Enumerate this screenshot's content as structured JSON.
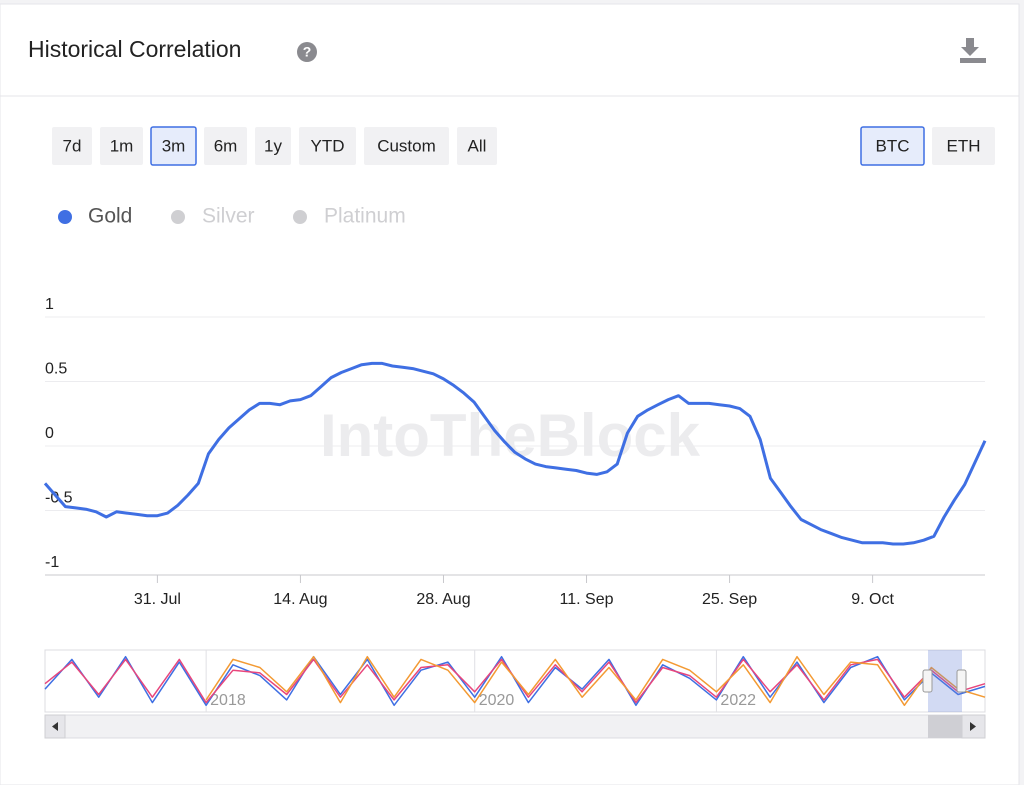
{
  "header": {
    "title": "Historical Correlation",
    "help_icon": "?"
  },
  "range_buttons": [
    "7d",
    "1m",
    "3m",
    "6m",
    "1y",
    "YTD",
    "Custom",
    "All"
  ],
  "selected_range_index": 2,
  "asset_buttons": [
    "BTC",
    "ETH"
  ],
  "selected_asset_index": 0,
  "watermark": "IntoTheBlock",
  "chart_data": [
    {
      "type": "line",
      "categories": [
        null,
        null,
        null,
        null,
        null,
        null,
        null,
        null,
        null,
        null,
        null,
        "31. Jul",
        null,
        null,
        null,
        null,
        null,
        null,
        null,
        null,
        null,
        null,
        null,
        null,
        null,
        "14. Aug",
        null,
        null,
        null,
        null,
        null,
        null,
        null,
        null,
        null,
        null,
        null,
        null,
        null,
        "28. Aug",
        null,
        null,
        null,
        null,
        null,
        null,
        null,
        null,
        null,
        null,
        null,
        null,
        null,
        "11. Sep",
        null,
        null,
        null,
        null,
        null,
        null,
        null,
        null,
        null,
        null,
        null,
        null,
        null,
        "25. Sep",
        null,
        null,
        null,
        null,
        null,
        null,
        null,
        null,
        null,
        null,
        null,
        null,
        null,
        "9. Oct",
        null,
        null,
        null,
        null,
        null,
        null,
        null,
        null,
        null,
        null,
        null
      ],
      "series": [
        {
          "name": "Gold",
          "color": "#3f6fe3",
          "values": [
            -0.29,
            -0.38,
            -0.47,
            -0.48,
            -0.49,
            -0.51,
            -0.55,
            -0.51,
            -0.52,
            -0.53,
            -0.54,
            -0.54,
            -0.52,
            -0.46,
            -0.38,
            -0.29,
            -0.06,
            0.05,
            0.14,
            0.21,
            0.28,
            0.33,
            0.33,
            0.32,
            0.35,
            0.36,
            0.39,
            0.46,
            0.53,
            0.57,
            0.6,
            0.63,
            0.64,
            0.64,
            0.62,
            0.61,
            0.6,
            0.58,
            0.56,
            0.52,
            0.47,
            0.41,
            0.34,
            0.23,
            0.12,
            0.03,
            -0.05,
            -0.1,
            -0.14,
            -0.16,
            -0.17,
            -0.18,
            -0.19,
            -0.21,
            -0.22,
            -0.2,
            -0.14,
            0.1,
            0.23,
            0.28,
            0.32,
            0.36,
            0.39,
            0.33,
            0.33,
            0.33,
            0.32,
            0.31,
            0.29,
            0.23,
            0.05,
            -0.25,
            -0.36,
            -0.47,
            -0.57,
            -0.61,
            -0.65,
            -0.68,
            -0.71,
            -0.73,
            -0.75,
            -0.75,
            -0.75,
            -0.76,
            -0.76,
            -0.75,
            -0.73,
            -0.7,
            -0.55,
            -0.42,
            -0.3,
            -0.13,
            0.04
          ]
        }
      ],
      "hidden_series": [
        {
          "name": "Silver"
        },
        {
          "name": "Platinum"
        }
      ],
      "hidden_color": "#cfcfd2",
      "ylim": [
        -1,
        1
      ],
      "yticks": [
        -1,
        -0.5,
        0,
        0.5,
        1
      ],
      "grid": true
    },
    {
      "type": "line",
      "categories": [
        null,
        null,
        null,
        null,
        null,
        null,
        "2018",
        null,
        null,
        null,
        null,
        null,
        null,
        null,
        null,
        null,
        "2020",
        null,
        null,
        null,
        null,
        null,
        null,
        null,
        null,
        "2022",
        null,
        null,
        null,
        null,
        null,
        null,
        null,
        null,
        null,
        null
      ],
      "series": [
        {
          "color": "#3f6fe3",
          "values": [
            -0.3,
            0.8,
            -0.6,
            0.9,
            -0.8,
            0.7,
            -0.9,
            0.6,
            0.2,
            -0.7,
            0.9,
            -0.5,
            0.8,
            -0.9,
            0.4,
            0.7,
            -0.6,
            0.9,
            -0.8,
            0.5,
            -0.3,
            0.8,
            -0.9,
            0.6,
            0.1,
            -0.7,
            0.9,
            -0.6,
            0.7,
            -0.8,
            0.5,
            0.9,
            -0.7,
            0.3,
            -0.5,
            -0.2
          ]
        },
        {
          "color": "#e8467c",
          "values": [
            -0.1,
            0.7,
            -0.5,
            0.8,
            -0.6,
            0.8,
            -0.8,
            0.4,
            0.3,
            -0.5,
            0.8,
            -0.6,
            0.6,
            -0.7,
            0.5,
            0.6,
            -0.4,
            0.8,
            -0.6,
            0.6,
            -0.4,
            0.7,
            -0.8,
            0.5,
            0.2,
            -0.6,
            0.8,
            -0.4,
            0.6,
            -0.7,
            0.6,
            0.8,
            -0.6,
            0.4,
            -0.4,
            -0.1
          ]
        },
        {
          "color": "#f39a33",
          "values": [
            null,
            null,
            null,
            null,
            null,
            null,
            -0.7,
            0.8,
            0.5,
            -0.4,
            0.9,
            -0.8,
            0.9,
            -0.6,
            0.8,
            0.4,
            -0.8,
            0.7,
            -0.5,
            0.8,
            -0.6,
            0.5,
            -0.7,
            0.8,
            0.4,
            -0.4,
            0.6,
            -0.8,
            0.9,
            -0.5,
            0.7,
            0.6,
            -0.9,
            0.5,
            -0.3,
            -0.6
          ]
        }
      ],
      "ylim": [
        -1,
        1
      ]
    }
  ]
}
